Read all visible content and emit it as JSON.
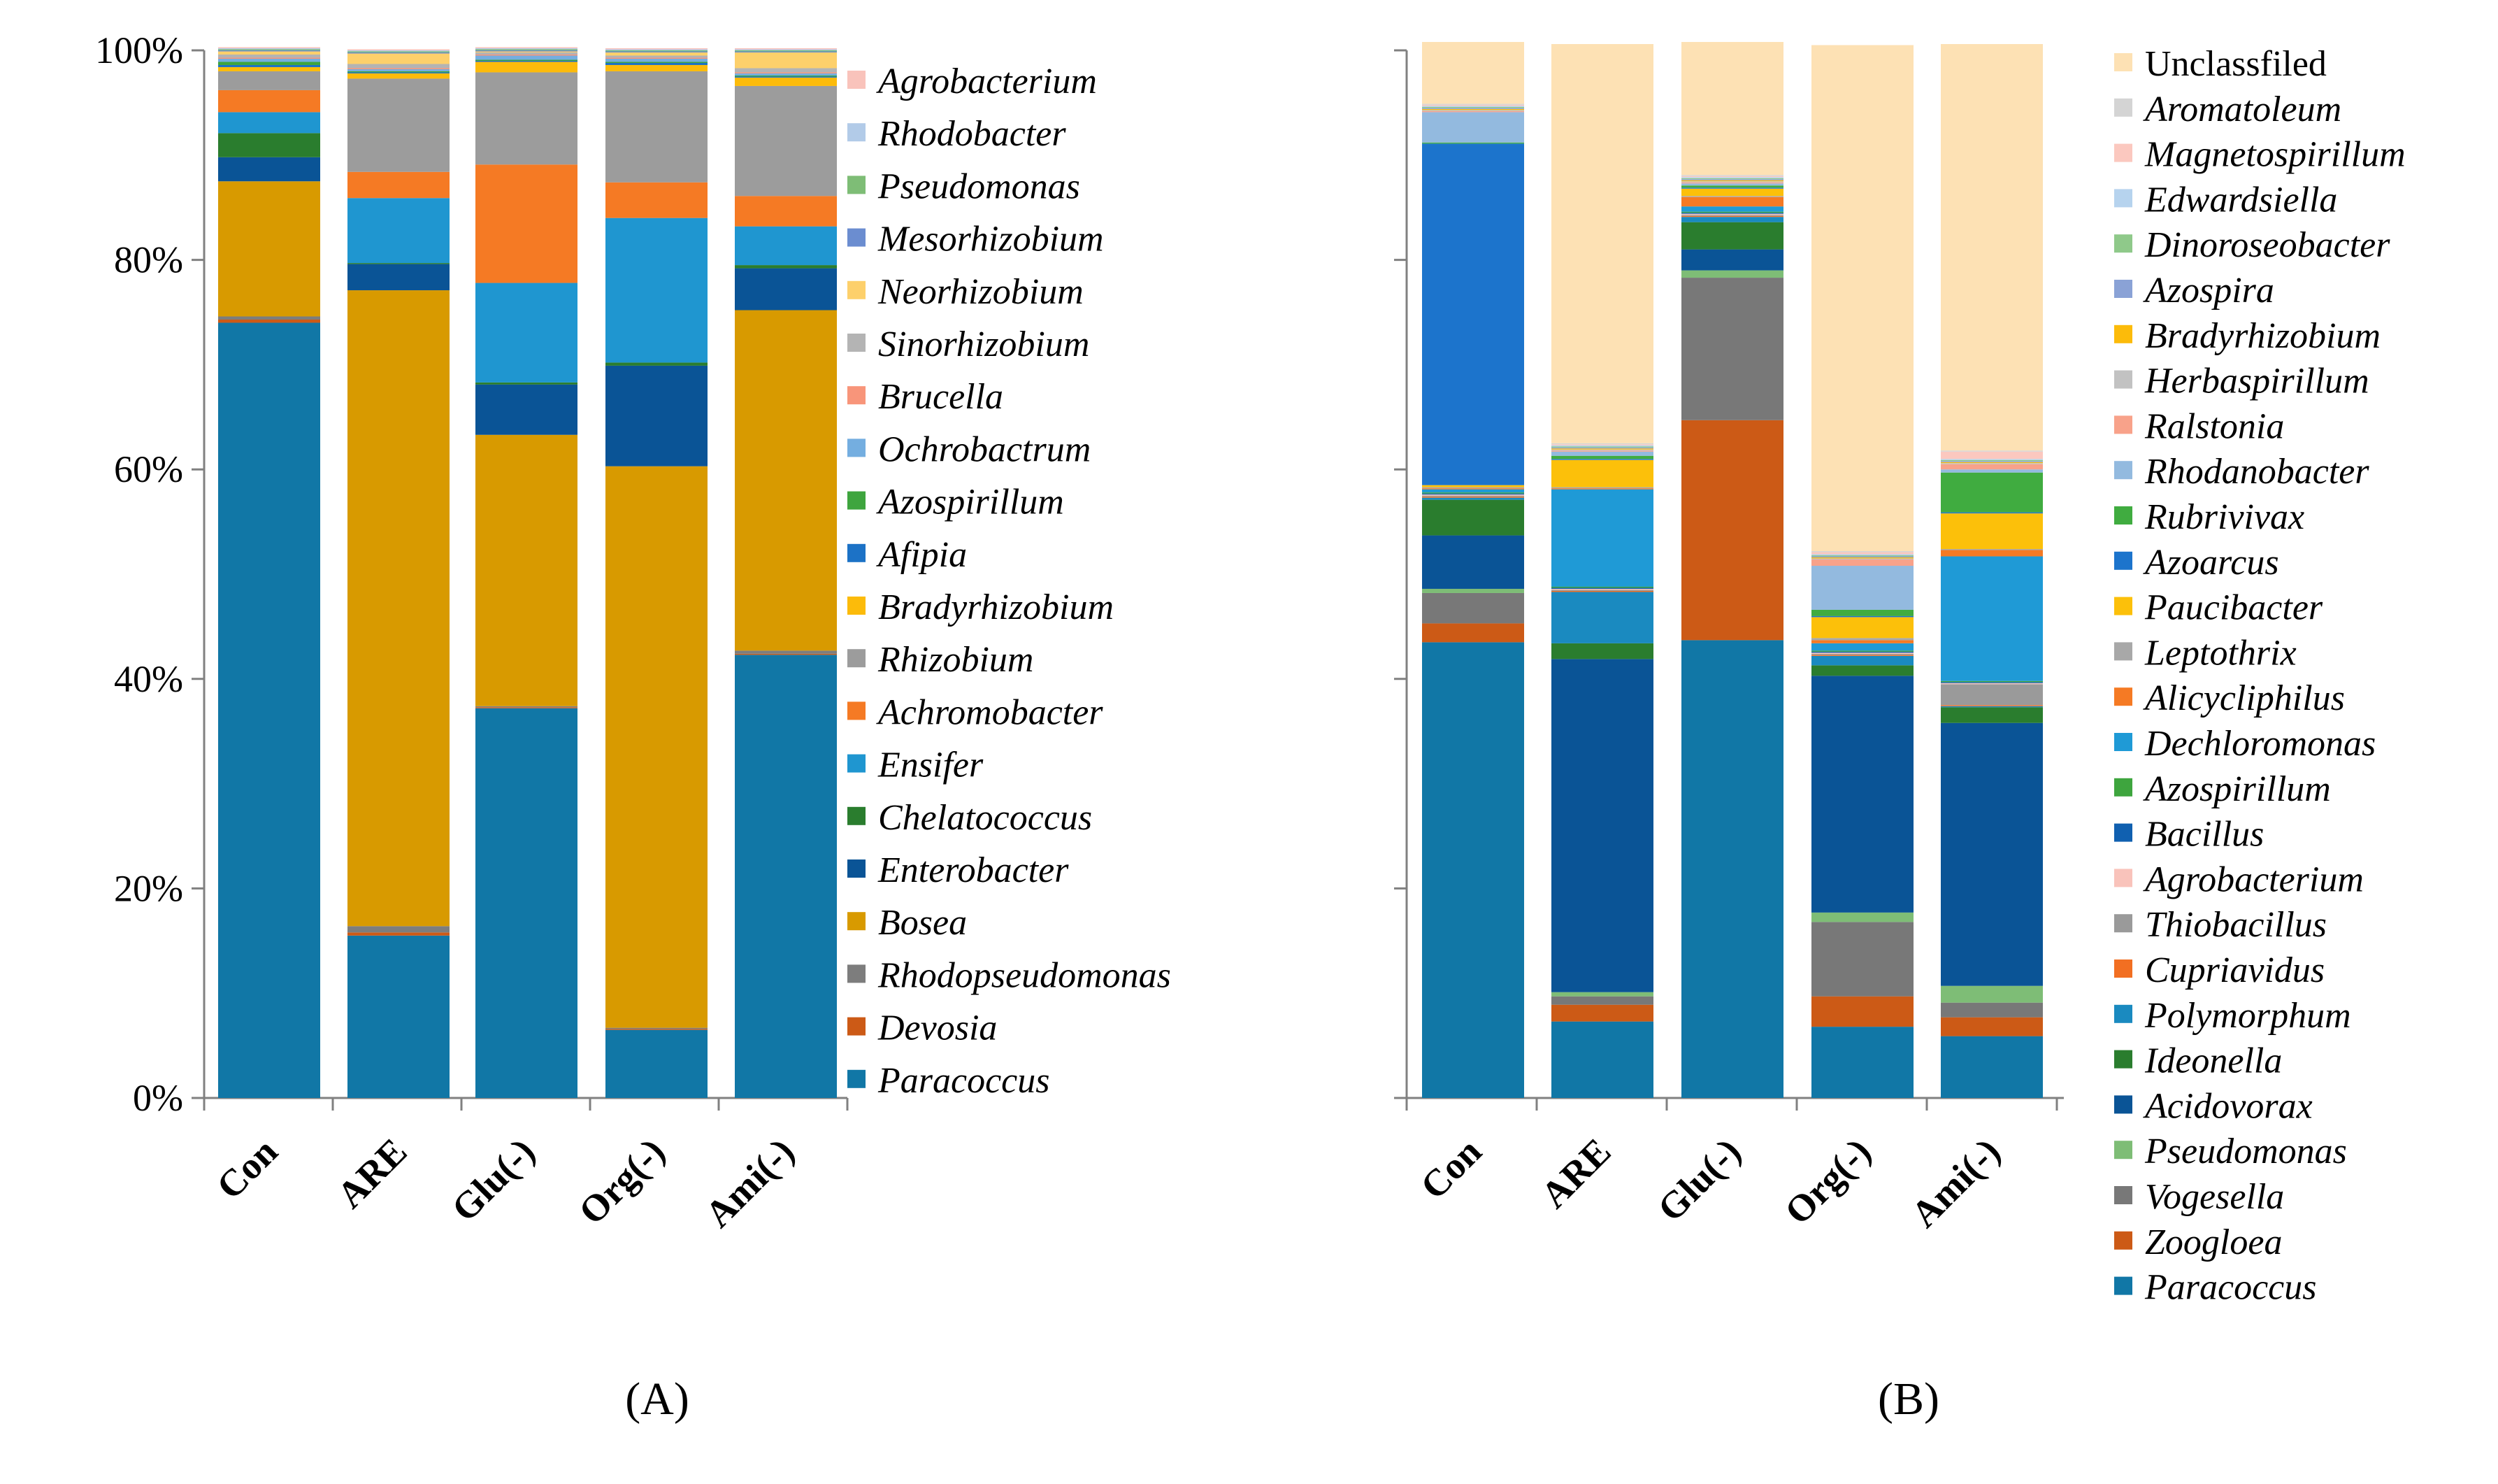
{
  "colors": {
    "Paracoccus": "#1177a6",
    "Devosia": "#cc5a16",
    "Rhodopseudomonas": "#7d7d7d",
    "Bosea": "#d89a00",
    "Enterobacter": "#0a5496",
    "Chelatococcus": "#2a7d2e",
    "Ensifer": "#1f96d0",
    "Achromobacter": "#f57a24",
    "Rhizobium": "#9c9c9c",
    "Bradyrhizobium": "#fcbb0a",
    "Afipia": "#1c72c6",
    "Azospirillum": "#3ea53e",
    "Ochrobactrum": "#74aee0",
    "Brucella": "#f8957a",
    "Sinorhizobium": "#b4b4b4",
    "Neorhizobium": "#fdd06b",
    "Mesorhizobium": "#6b8dd0",
    "Pseudomonas": "#7ebd76",
    "Rhodobacter": "#b2cbe8",
    "Agrobacterium": "#f9c3bb",
    "Zoogloea": "#cc5a16",
    "Vogesella": "#787878",
    "Acidovorax": "#0a5496",
    "Ideonella": "#2a7d2e",
    "Polymorphum": "#1a8ac0",
    "Cupriavidus": "#f26f22",
    "Thiobacillus": "#9a9a9a",
    "Bacillus": "#1060b0",
    "Dechloromonas": "#1f9ad6",
    "Alicycliphilus": "#f57a24",
    "Leptothrix": "#a8a8a8",
    "Paucibacter": "#fcc00a",
    "Azoarcus": "#1c74cc",
    "Rubrivivax": "#40ac40",
    "Rhodanobacter": "#93badf",
    "Ralstonia": "#f8a28a",
    "Herbaspirillum": "#c2c2c2",
    "Azospira": "#8aa2d6",
    "Dinoroseobacter": "#8fc98a",
    "Edwardsiella": "#b6d3ee",
    "Magnetospirillum": "#fbc8bf",
    "Aromatoleum": "#d4d4d4",
    "Unclassfiled": "#fde1b4"
  },
  "chart_data": [
    {
      "type": "bar",
      "stacked": true,
      "title": "(A)",
      "categories": [
        "Con",
        "ARE",
        "Glu(-)",
        "Org(-)",
        "Ami(-)"
      ],
      "yticks": [
        "0%",
        "20%",
        "40%",
        "60%",
        "80%",
        "100%"
      ],
      "ylim": [
        0,
        100
      ],
      "legend": [
        "Agrobacterium",
        "Rhodobacter",
        "Pseudomonas",
        "Mesorhizobium",
        "Neorhizobium",
        "Sinorhizobium",
        "Brucella",
        "Ochrobactrum",
        "Azospirillum",
        "Afipia",
        "Bradyrhizobium",
        "Rhizobium",
        "Achromobacter",
        "Ensifer",
        "Chelatococcus",
        "Enterobacter",
        "Bosea",
        "Rhodopseudomonas",
        "Devosia",
        "Paracoccus"
      ],
      "series": [
        {
          "name": "Paracoccus",
          "values": [
            74.0,
            15.5,
            37.2,
            6.5,
            42.3
          ]
        },
        {
          "name": "Devosia",
          "values": [
            0.3,
            0.3,
            0.1,
            0.1,
            0.1
          ]
        },
        {
          "name": "Rhodopseudomonas",
          "values": [
            0.3,
            0.6,
            0.1,
            0.1,
            0.3
          ]
        },
        {
          "name": "Bosea",
          "values": [
            12.9,
            60.7,
            25.9,
            53.6,
            32.5
          ]
        },
        {
          "name": "Enterobacter",
          "values": [
            2.3,
            2.5,
            4.8,
            9.6,
            4.0
          ]
        },
        {
          "name": "Chelatococcus",
          "values": [
            2.3,
            0.1,
            0.2,
            0.3,
            0.3
          ]
        },
        {
          "name": "Ensifer",
          "values": [
            2.0,
            6.2,
            9.5,
            13.8,
            3.7
          ]
        },
        {
          "name": "Achromobacter",
          "values": [
            2.1,
            2.5,
            11.3,
            3.4,
            2.9
          ]
        },
        {
          "name": "Rhizobium",
          "values": [
            1.8,
            8.9,
            8.8,
            10.6,
            10.5
          ]
        },
        {
          "name": "Bradyrhizobium",
          "values": [
            0.4,
            0.5,
            1.0,
            0.6,
            0.8
          ]
        },
        {
          "name": "Afipia",
          "values": [
            0.2,
            0.1,
            0.1,
            0.2,
            0.1
          ]
        },
        {
          "name": "Azospirillum",
          "values": [
            0.3,
            0.1,
            0.1,
            0.1,
            0.1
          ]
        },
        {
          "name": "Ochrobactrum",
          "values": [
            0.3,
            0.2,
            0.4,
            0.3,
            0.2
          ]
        },
        {
          "name": "Brucella",
          "values": [
            0.1,
            0.1,
            0.1,
            0.1,
            0.1
          ]
        },
        {
          "name": "Sinorhizobium",
          "values": [
            0.3,
            0.4,
            0.2,
            0.2,
            0.4
          ]
        },
        {
          "name": "Neorhizobium",
          "values": [
            0.3,
            1.0,
            0.1,
            0.3,
            1.5
          ]
        },
        {
          "name": "Mesorhizobium",
          "values": [
            0.1,
            0.1,
            0.1,
            0.1,
            0.1
          ]
        },
        {
          "name": "Pseudomonas",
          "values": [
            0.1,
            0.1,
            0.1,
            0.1,
            0.1
          ]
        },
        {
          "name": "Rhodobacter",
          "values": [
            0.1,
            0.1,
            0.1,
            0.1,
            0.1
          ]
        },
        {
          "name": "Agrobacterium",
          "values": [
            0.1,
            0.1,
            0.1,
            0.1,
            0.1
          ]
        }
      ]
    },
    {
      "type": "bar",
      "stacked": true,
      "title": "(B)",
      "categories": [
        "Con",
        "ARE",
        "Glu(-)",
        "Org(-)",
        "Ami(-)"
      ],
      "ylim": [
        0,
        100
      ],
      "legend": [
        "Unclassfiled",
        "Aromatoleum",
        "Magnetospirillum",
        "Edwardsiella",
        "Dinoroseobacter",
        "Azospira",
        "Bradyrhizobium",
        "Herbaspirillum",
        "Ralstonia",
        "Rhodanobacter",
        "Rubrivivax",
        "Azoarcus",
        "Paucibacter",
        "Leptothrix",
        "Alicycliphilus",
        "Dechloromonas",
        "Azospirillum",
        "Bacillus",
        "Agrobacterium",
        "Thiobacillus",
        "Cupriavidus",
        "Polymorphum",
        "Ideonella",
        "Acidovorax",
        "Pseudomonas",
        "Vogesella",
        "Zoogloea",
        "Paracoccus"
      ],
      "series": [
        {
          "name": "Paracoccus",
          "values": [
            43.5,
            7.3,
            43.7,
            6.8,
            5.9
          ]
        },
        {
          "name": "Zoogloea",
          "values": [
            1.8,
            1.6,
            21.0,
            2.9,
            1.8
          ]
        },
        {
          "name": "Vogesella",
          "values": [
            2.9,
            0.8,
            13.6,
            7.1,
            1.4
          ]
        },
        {
          "name": "Pseudomonas",
          "values": [
            0.4,
            0.4,
            0.7,
            0.9,
            1.6
          ]
        },
        {
          "name": "Acidovorax",
          "values": [
            5.1,
            31.8,
            2.0,
            22.6,
            25.1
          ]
        },
        {
          "name": "Ideonella",
          "values": [
            3.4,
            1.5,
            2.6,
            1.0,
            1.5
          ]
        },
        {
          "name": "Polymorphum",
          "values": [
            0.2,
            4.9,
            0.5,
            0.9,
            0.1
          ]
        },
        {
          "name": "Cupriavidus",
          "values": [
            0.1,
            0.1,
            0.1,
            0.1,
            0.1
          ]
        },
        {
          "name": "Thiobacillus",
          "values": [
            0.1,
            0.1,
            0.1,
            0.1,
            2.0
          ]
        },
        {
          "name": "Agrobacterium",
          "values": [
            0.1,
            0.1,
            0.1,
            0.1,
            0.1
          ]
        },
        {
          "name": "Bacillus",
          "values": [
            0.1,
            0.1,
            0.1,
            0.1,
            0.1
          ]
        },
        {
          "name": "Azospirillum",
          "values": [
            0.1,
            0.1,
            0.1,
            0.1,
            0.1
          ]
        },
        {
          "name": "Dechloromonas",
          "values": [
            0.3,
            9.3,
            0.5,
            0.7,
            11.9
          ]
        },
        {
          "name": "Alicycliphilus",
          "values": [
            0.1,
            0.1,
            0.9,
            0.3,
            0.6
          ]
        },
        {
          "name": "Leptothrix",
          "values": [
            0.1,
            0.1,
            0.1,
            0.2,
            0.1
          ]
        },
        {
          "name": "Paucibacter",
          "values": [
            0.2,
            2.6,
            0.7,
            2.0,
            3.4
          ]
        },
        {
          "name": "Azoarcus",
          "values": [
            32.6,
            0.1,
            0.1,
            0.1,
            0.1
          ]
        },
        {
          "name": "Rubrivivax",
          "values": [
            0.1,
            0.3,
            0.2,
            0.6,
            3.8
          ]
        },
        {
          "name": "Rhodanobacter",
          "values": [
            2.9,
            0.4,
            0.2,
            4.2,
            0.3
          ]
        },
        {
          "name": "Ralstonia",
          "values": [
            0.1,
            0.1,
            0.1,
            0.6,
            0.5
          ]
        },
        {
          "name": "Herbaspirillum",
          "values": [
            0.1,
            0.1,
            0.1,
            0.1,
            0.1
          ]
        },
        {
          "name": "Bradyrhizobium",
          "values": [
            0.1,
            0.1,
            0.1,
            0.1,
            0.1
          ]
        },
        {
          "name": "Azospira",
          "values": [
            0.1,
            0.1,
            0.1,
            0.1,
            0.1
          ]
        },
        {
          "name": "Dinoroseobacter",
          "values": [
            0.1,
            0.1,
            0.1,
            0.1,
            0.1
          ]
        },
        {
          "name": "Edwardsiella",
          "values": [
            0.1,
            0.1,
            0.1,
            0.1,
            0.1
          ]
        },
        {
          "name": "Magnetospirillum",
          "values": [
            0.1,
            0.1,
            0.1,
            0.2,
            0.7
          ]
        },
        {
          "name": "Aromatoleum",
          "values": [
            0.1,
            0.1,
            0.1,
            0.1,
            0.1
          ]
        },
        {
          "name": "Unclassfiled",
          "values": [
            5.9,
            38.1,
            12.7,
            48.3,
            38.8
          ]
        }
      ]
    }
  ]
}
